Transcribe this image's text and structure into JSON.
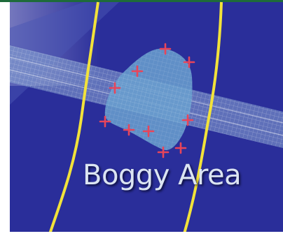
{
  "label": "Boggy Area",
  "colors": {
    "background": "#2a2e9a",
    "track_band": "#8aa8d4",
    "boggy_fill": "#6aa0cf",
    "marker": "#e8455a",
    "boundary_line": "#f2e23a",
    "top_bar": "#1e6b3a",
    "label_text": "#dbe4f2"
  },
  "markers": {
    "icon": "plus-marker-icon"
  }
}
